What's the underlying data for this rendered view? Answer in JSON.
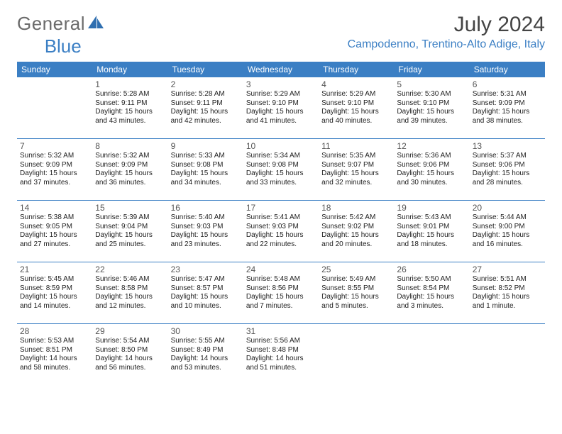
{
  "brand": {
    "word1": "General",
    "word2": "Blue",
    "sail_color": "#2f6fb0",
    "word1_color": "#6b6b6b",
    "word2_color": "#3b7fc4"
  },
  "title": "July 2024",
  "location": "Campodenno, Trentino-Alto Adige, Italy",
  "accent_color": "#3b7fc4",
  "day_headers": [
    "Sunday",
    "Monday",
    "Tuesday",
    "Wednesday",
    "Thursday",
    "Friday",
    "Saturday"
  ],
  "weeks": [
    [
      {
        "day": "",
        "lines": []
      },
      {
        "day": "1",
        "lines": [
          "Sunrise: 5:28 AM",
          "Sunset: 9:11 PM",
          "Daylight: 15 hours and 43 minutes."
        ]
      },
      {
        "day": "2",
        "lines": [
          "Sunrise: 5:28 AM",
          "Sunset: 9:11 PM",
          "Daylight: 15 hours and 42 minutes."
        ]
      },
      {
        "day": "3",
        "lines": [
          "Sunrise: 5:29 AM",
          "Sunset: 9:10 PM",
          "Daylight: 15 hours and 41 minutes."
        ]
      },
      {
        "day": "4",
        "lines": [
          "Sunrise: 5:29 AM",
          "Sunset: 9:10 PM",
          "Daylight: 15 hours and 40 minutes."
        ]
      },
      {
        "day": "5",
        "lines": [
          "Sunrise: 5:30 AM",
          "Sunset: 9:10 PM",
          "Daylight: 15 hours and 39 minutes."
        ]
      },
      {
        "day": "6",
        "lines": [
          "Sunrise: 5:31 AM",
          "Sunset: 9:09 PM",
          "Daylight: 15 hours and 38 minutes."
        ]
      }
    ],
    [
      {
        "day": "7",
        "lines": [
          "Sunrise: 5:32 AM",
          "Sunset: 9:09 PM",
          "Daylight: 15 hours and 37 minutes."
        ]
      },
      {
        "day": "8",
        "lines": [
          "Sunrise: 5:32 AM",
          "Sunset: 9:09 PM",
          "Daylight: 15 hours and 36 minutes."
        ]
      },
      {
        "day": "9",
        "lines": [
          "Sunrise: 5:33 AM",
          "Sunset: 9:08 PM",
          "Daylight: 15 hours and 34 minutes."
        ]
      },
      {
        "day": "10",
        "lines": [
          "Sunrise: 5:34 AM",
          "Sunset: 9:08 PM",
          "Daylight: 15 hours and 33 minutes."
        ]
      },
      {
        "day": "11",
        "lines": [
          "Sunrise: 5:35 AM",
          "Sunset: 9:07 PM",
          "Daylight: 15 hours and 32 minutes."
        ]
      },
      {
        "day": "12",
        "lines": [
          "Sunrise: 5:36 AM",
          "Sunset: 9:06 PM",
          "Daylight: 15 hours and 30 minutes."
        ]
      },
      {
        "day": "13",
        "lines": [
          "Sunrise: 5:37 AM",
          "Sunset: 9:06 PM",
          "Daylight: 15 hours and 28 minutes."
        ]
      }
    ],
    [
      {
        "day": "14",
        "lines": [
          "Sunrise: 5:38 AM",
          "Sunset: 9:05 PM",
          "Daylight: 15 hours and 27 minutes."
        ]
      },
      {
        "day": "15",
        "lines": [
          "Sunrise: 5:39 AM",
          "Sunset: 9:04 PM",
          "Daylight: 15 hours and 25 minutes."
        ]
      },
      {
        "day": "16",
        "lines": [
          "Sunrise: 5:40 AM",
          "Sunset: 9:03 PM",
          "Daylight: 15 hours and 23 minutes."
        ]
      },
      {
        "day": "17",
        "lines": [
          "Sunrise: 5:41 AM",
          "Sunset: 9:03 PM",
          "Daylight: 15 hours and 22 minutes."
        ]
      },
      {
        "day": "18",
        "lines": [
          "Sunrise: 5:42 AM",
          "Sunset: 9:02 PM",
          "Daylight: 15 hours and 20 minutes."
        ]
      },
      {
        "day": "19",
        "lines": [
          "Sunrise: 5:43 AM",
          "Sunset: 9:01 PM",
          "Daylight: 15 hours and 18 minutes."
        ]
      },
      {
        "day": "20",
        "lines": [
          "Sunrise: 5:44 AM",
          "Sunset: 9:00 PM",
          "Daylight: 15 hours and 16 minutes."
        ]
      }
    ],
    [
      {
        "day": "21",
        "lines": [
          "Sunrise: 5:45 AM",
          "Sunset: 8:59 PM",
          "Daylight: 15 hours and 14 minutes."
        ]
      },
      {
        "day": "22",
        "lines": [
          "Sunrise: 5:46 AM",
          "Sunset: 8:58 PM",
          "Daylight: 15 hours and 12 minutes."
        ]
      },
      {
        "day": "23",
        "lines": [
          "Sunrise: 5:47 AM",
          "Sunset: 8:57 PM",
          "Daylight: 15 hours and 10 minutes."
        ]
      },
      {
        "day": "24",
        "lines": [
          "Sunrise: 5:48 AM",
          "Sunset: 8:56 PM",
          "Daylight: 15 hours and 7 minutes."
        ]
      },
      {
        "day": "25",
        "lines": [
          "Sunrise: 5:49 AM",
          "Sunset: 8:55 PM",
          "Daylight: 15 hours and 5 minutes."
        ]
      },
      {
        "day": "26",
        "lines": [
          "Sunrise: 5:50 AM",
          "Sunset: 8:54 PM",
          "Daylight: 15 hours and 3 minutes."
        ]
      },
      {
        "day": "27",
        "lines": [
          "Sunrise: 5:51 AM",
          "Sunset: 8:52 PM",
          "Daylight: 15 hours and 1 minute."
        ]
      }
    ],
    [
      {
        "day": "28",
        "lines": [
          "Sunrise: 5:53 AM",
          "Sunset: 8:51 PM",
          "Daylight: 14 hours and 58 minutes."
        ]
      },
      {
        "day": "29",
        "lines": [
          "Sunrise: 5:54 AM",
          "Sunset: 8:50 PM",
          "Daylight: 14 hours and 56 minutes."
        ]
      },
      {
        "day": "30",
        "lines": [
          "Sunrise: 5:55 AM",
          "Sunset: 8:49 PM",
          "Daylight: 14 hours and 53 minutes."
        ]
      },
      {
        "day": "31",
        "lines": [
          "Sunrise: 5:56 AM",
          "Sunset: 8:48 PM",
          "Daylight: 14 hours and 51 minutes."
        ]
      },
      {
        "day": "",
        "lines": []
      },
      {
        "day": "",
        "lines": []
      },
      {
        "day": "",
        "lines": []
      }
    ]
  ]
}
